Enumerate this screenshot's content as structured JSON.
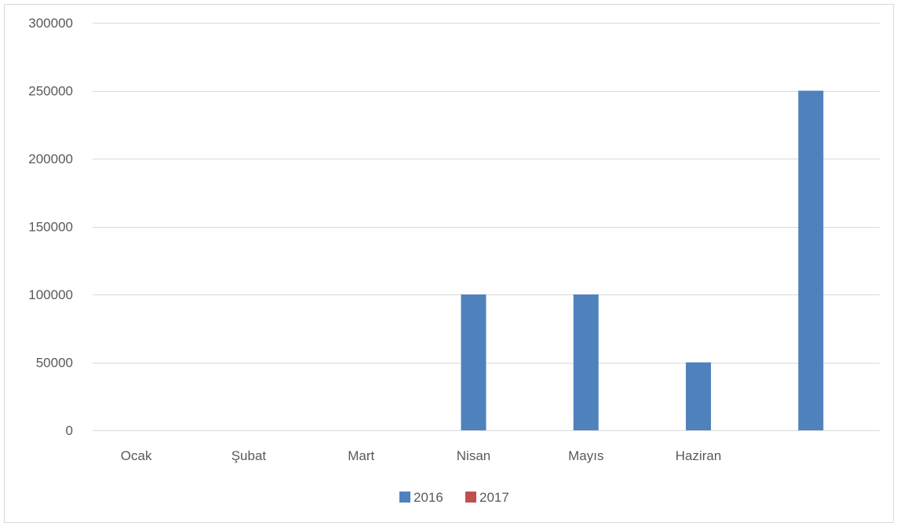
{
  "chart_data": {
    "type": "bar",
    "title": "",
    "xlabel": "",
    "ylabel": "",
    "categories": [
      "Ocak",
      "Şubat",
      "Mart",
      "Nisan",
      "Mayıs",
      "Haziran",
      ""
    ],
    "series": [
      {
        "name": "2016",
        "color": "#4f81bd",
        "values": [
          0,
          0,
          0,
          100000,
          100000,
          50000,
          250000
        ]
      },
      {
        "name": "2017",
        "color": "#c0504d",
        "values": [
          0,
          0,
          0,
          0,
          0,
          0,
          0
        ]
      }
    ],
    "ylim": [
      0,
      300000
    ],
    "yticks": [
      "0",
      "50000",
      "100000",
      "150000",
      "200000",
      "250000",
      "300000"
    ],
    "grid": true,
    "legend_position": "bottom"
  }
}
